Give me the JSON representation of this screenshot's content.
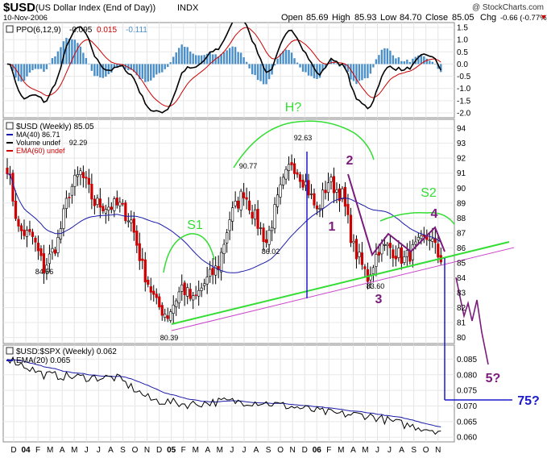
{
  "header": {
    "symbol": "$USD",
    "name": "(US Dollar Index (End of Day))",
    "exchange": "INDX",
    "date": "10-Nov-2006",
    "open_label": "Open",
    "open": "85.69",
    "high_label": "High",
    "high": "85.93",
    "low_label": "Low",
    "low": "84.70",
    "close_label": "Close",
    "close": "85.05",
    "chg_label": "Chg",
    "chg": "-0.66 (-0.77%)",
    "watermark": "@ StockCharts.com"
  },
  "colors": {
    "price": "#000000",
    "ma40": "#1a1aaa",
    "ema60": "#cc0000",
    "histogram": "#4a8fc8",
    "annotation_green": "#33dd33",
    "annotation_purple": "#7a1a7a",
    "annotation_blue": "#1a1acc",
    "channel_pink": "#cc44cc"
  },
  "ppo_panel": {
    "label": "PPO(6,12,9) -0.095, 0.015, -0.111",
    "label_ppo": "PPO(6,12,9)",
    "ppo": "-0.095",
    "signal": "0.015",
    "hist": "-0.111",
    "yticks": [
      "1.5",
      "1.0",
      "0.5",
      "0.0",
      "-0.5",
      "-1.0",
      "-1.5",
      "-2.0"
    ]
  },
  "price_panel": {
    "legend": [
      {
        "text": "$USD (Weekly) 85.05",
        "color": "#000000"
      },
      {
        "text": "MA(40) 86.71",
        "color": "#1a1aaa"
      },
      {
        "text": "Volume undef",
        "color": "#000000"
      },
      {
        "text": "EMA(60) undef",
        "color": "#cc0000"
      }
    ],
    "yticks": [
      "94",
      "93",
      "92",
      "91",
      "90",
      "89",
      "88",
      "87",
      "86",
      "85",
      "84",
      "83",
      "82",
      "81",
      "80"
    ],
    "point_labels": [
      "92.29",
      "90.77",
      "92.63",
      "84.56",
      "86.02",
      "83.60",
      "80.39"
    ],
    "annotations": {
      "H": "H?",
      "S1": "S1",
      "S2": "S2",
      "w1": "1",
      "w2": "2",
      "w3": "3",
      "w4": "4",
      "w5": "5?",
      "target": "75?"
    }
  },
  "ratio_panel": {
    "label": "$USD:$SPX (Weekly) 0.062",
    "ema_label": "EMA(20) 0.065",
    "yticks": [
      "0.085",
      "0.080",
      "0.075",
      "0.070",
      "0.065",
      "0.060"
    ]
  },
  "x_axis": {
    "labels": [
      "D",
      "04",
      "F",
      "M",
      "A",
      "M",
      "J",
      "J",
      "A",
      "S",
      "O",
      "N",
      "D",
      "05",
      "F",
      "M",
      "A",
      "M",
      "J",
      "J",
      "A",
      "S",
      "O",
      "N",
      "D",
      "06",
      "F",
      "M",
      "A",
      "M",
      "J",
      "J",
      "A",
      "S",
      "O",
      "N"
    ]
  },
  "chart_data": [
    {
      "type": "line",
      "title": "$USD (Weekly) 85.05",
      "frequency": "weekly",
      "x_range": [
        "Dec 2003",
        "Nov 2006"
      ],
      "ylim": [
        80,
        94
      ],
      "series": [
        {
          "name": "$USD (Weekly)",
          "kind": "price bars",
          "points": [
            {
              "x": "Dec 2003",
              "y": 91.5
            },
            {
              "x": "Jan 2004",
              "y": 87.2
            },
            {
              "x": "Feb 2004",
              "y": 86.7
            },
            {
              "x": "Mar 2004",
              "y": 84.6
            },
            {
              "x": "Apr 2004",
              "y": 86.5
            },
            {
              "x": "May 2004",
              "y": 89.8
            },
            {
              "x": "Jun 2004",
              "y": 91.0
            },
            {
              "x": "Jul 2004",
              "y": 89.0
            },
            {
              "x": "Aug 2004",
              "y": 88.8
            },
            {
              "x": "Sep 2004",
              "y": 88.8
            },
            {
              "x": "Oct 2004",
              "y": 87.8
            },
            {
              "x": "Nov 2004",
              "y": 84.7
            },
            {
              "x": "Dec 2004",
              "y": 82.2
            },
            {
              "x": "Jan 2005",
              "y": 81.5
            },
            {
              "x": "Feb 2005",
              "y": 83.4
            },
            {
              "x": "Mar 2005",
              "y": 82.4
            },
            {
              "x": "Apr 2005",
              "y": 83.6
            },
            {
              "x": "May 2005",
              "y": 84.8
            },
            {
              "x": "Jun 2005",
              "y": 88.0
            },
            {
              "x": "Jul 2005",
              "y": 89.8
            },
            {
              "x": "Aug 2005",
              "y": 88.0
            },
            {
              "x": "Sep 2005",
              "y": 86.4
            },
            {
              "x": "Oct 2005",
              "y": 89.8
            },
            {
              "x": "Nov 2005",
              "y": 91.8
            },
            {
              "x": "Dec 2005",
              "y": 90.3
            },
            {
              "x": "Jan 2006",
              "y": 88.4
            },
            {
              "x": "Feb 2006",
              "y": 90.5
            },
            {
              "x": "Mar 2006",
              "y": 89.5
            },
            {
              "x": "Apr 2006",
              "y": 86.0
            },
            {
              "x": "May 2006",
              "y": 84.0
            },
            {
              "x": "Jun 2006",
              "y": 86.0
            },
            {
              "x": "Jul 2006",
              "y": 86.0
            },
            {
              "x": "Aug 2006",
              "y": 85.2
            },
            {
              "x": "Sep 2006",
              "y": 86.0
            },
            {
              "x": "Oct 2006",
              "y": 86.8
            },
            {
              "x": "Nov 2006",
              "y": 85.05
            }
          ]
        },
        {
          "name": "MA(40)",
          "value": 86.71
        },
        {
          "name": "EMA(60)",
          "value": "undef"
        }
      ],
      "annotations": [
        {
          "text": "92.29",
          "x": "Jun 2004",
          "y": 92.29
        },
        {
          "text": "84.56",
          "x": "Mar 2004",
          "y": 84.56
        },
        {
          "text": "80.39",
          "x": "Dec 2004",
          "y": 80.39
        },
        {
          "text": "90.77",
          "x": "Jun 2005",
          "y": 90.77
        },
        {
          "text": "86.02",
          "x": "Sep 2005",
          "y": 86.02
        },
        {
          "text": "92.63",
          "x": "Nov 2005",
          "y": 92.63
        },
        {
          "text": "83.60",
          "x": "May 2006",
          "y": 83.6
        }
      ]
    },
    {
      "type": "line",
      "title": "PPO(6,12,9)",
      "ylim": [
        -2.0,
        1.5
      ],
      "series": [
        {
          "name": "PPO",
          "value": -0.095
        },
        {
          "name": "Signal",
          "value": 0.015
        },
        {
          "name": "Histogram",
          "value": -0.111
        }
      ]
    },
    {
      "type": "line",
      "title": "$USD:$SPX (Weekly) 0.062",
      "ylim": [
        0.058,
        0.09
      ],
      "series": [
        {
          "name": "$USD:$SPX",
          "value": 0.062,
          "points": [
            {
              "x": "Dec 2003",
              "y": 0.0855
            },
            {
              "x": "Mar 2004",
              "y": 0.08
            },
            {
              "x": "Jun 2004",
              "y": 0.0792
            },
            {
              "x": "Sep 2004",
              "y": 0.079
            },
            {
              "x": "Dec 2004",
              "y": 0.072
            },
            {
              "x": "Mar 2005",
              "y": 0.0705
            },
            {
              "x": "Jun 2005",
              "y": 0.0715
            },
            {
              "x": "Sep 2005",
              "y": 0.0712
            },
            {
              "x": "Dec 2005",
              "y": 0.0695
            },
            {
              "x": "Mar 2006",
              "y": 0.0675
            },
            {
              "x": "Jun 2006",
              "y": 0.067
            },
            {
              "x": "Sep 2006",
              "y": 0.064
            },
            {
              "x": "Nov 2006",
              "y": 0.062
            }
          ]
        },
        {
          "name": "EMA(20)",
          "value": 0.065
        }
      ]
    }
  ]
}
